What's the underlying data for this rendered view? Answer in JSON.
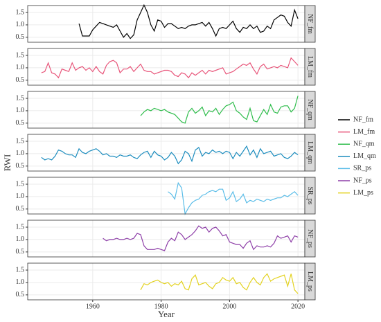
{
  "chart_data": {
    "type": "line",
    "xlabel": "Year",
    "ylabel": "RWI",
    "xlim": [
      1941,
      2022
    ],
    "xticks": [
      1960,
      1980,
      2000,
      2020
    ],
    "ylim": [
      0.3,
      1.78
    ],
    "yticks": [
      0.5,
      {
        "value": 1,
        "label": "1.0"
      },
      1.5
    ],
    "grid": true,
    "x": [
      1945,
      1946,
      1947,
      1948,
      1949,
      1950,
      1951,
      1952,
      1953,
      1954,
      1955,
      1956,
      1957,
      1958,
      1959,
      1960,
      1961,
      1962,
      1963,
      1964,
      1965,
      1966,
      1967,
      1968,
      1969,
      1970,
      1971,
      1972,
      1973,
      1974,
      1975,
      1976,
      1977,
      1978,
      1979,
      1980,
      1981,
      1982,
      1983,
      1984,
      1985,
      1986,
      1987,
      1988,
      1989,
      1990,
      1991,
      1992,
      1993,
      1994,
      1995,
      1996,
      1997,
      1998,
      1999,
      2000,
      2001,
      2002,
      2003,
      2004,
      2005,
      2006,
      2007,
      2008,
      2009,
      2010,
      2011,
      2012,
      2013,
      2014,
      2015,
      2016,
      2017,
      2018,
      2019,
      2020
    ],
    "series": [
      {
        "name": "NF_fm",
        "color": "#000000",
        "values": [
          null,
          null,
          null,
          null,
          null,
          null,
          null,
          null,
          null,
          null,
          null,
          1.05,
          0.55,
          0.55,
          0.55,
          0.8,
          0.95,
          1.1,
          1.05,
          1.0,
          0.95,
          0.9,
          1.0,
          0.75,
          0.5,
          0.65,
          0.45,
          0.6,
          1.2,
          1.5,
          1.8,
          1.5,
          1.0,
          0.75,
          1.2,
          1.15,
          0.9,
          1.05,
          1.05,
          0.95,
          0.85,
          0.9,
          0.85,
          0.95,
          1.0,
          1.0,
          1.05,
          1.1,
          0.95,
          1.1,
          0.85,
          0.55,
          0.85,
          0.9,
          0.85,
          1.0,
          1.15,
          0.85,
          0.7,
          0.9,
          0.85,
          1.0,
          0.85,
          0.95,
          0.7,
          0.75,
          0.95,
          0.85,
          1.2,
          1.3,
          1.4,
          1.35,
          1.1,
          0.95,
          1.6,
          1.25
        ]
      },
      {
        "name": "LM_fm",
        "color": "#e8557a",
        "values": [
          0.8,
          0.85,
          1.2,
          0.8,
          0.75,
          0.6,
          0.95,
          0.9,
          0.85,
          1.2,
          0.9,
          1.0,
          1.05,
          0.9,
          1.0,
          0.85,
          1.05,
          0.85,
          0.75,
          1.1,
          1.25,
          1.3,
          1.2,
          0.8,
          0.95,
          0.95,
          1.05,
          0.85,
          1.0,
          1.15,
          0.9,
          0.85,
          0.85,
          0.75,
          0.8,
          0.85,
          0.9,
          0.9,
          0.85,
          0.7,
          0.65,
          0.8,
          0.75,
          0.6,
          0.8,
          0.7,
          0.8,
          0.9,
          0.75,
          0.9,
          0.85,
          0.9,
          0.95,
          1.0,
          0.75,
          0.8,
          0.85,
          0.95,
          1.05,
          1.15,
          1.1,
          1.2,
          0.95,
          0.75,
          1.05,
          1.15,
          0.95,
          1.0,
          1.05,
          1.0,
          1.1,
          1.05,
          1.0,
          1.4,
          1.25,
          1.1
        ]
      },
      {
        "name": "NF_qm",
        "color": "#2fbd4c",
        "values": [
          null,
          null,
          null,
          null,
          null,
          null,
          null,
          null,
          null,
          null,
          null,
          null,
          null,
          null,
          null,
          null,
          null,
          null,
          null,
          null,
          null,
          null,
          null,
          null,
          null,
          null,
          null,
          null,
          null,
          0.8,
          0.95,
          1.05,
          1.0,
          1.1,
          1.05,
          1.0,
          1.05,
          0.95,
          0.9,
          0.85,
          0.7,
          0.55,
          0.5,
          0.95,
          1.1,
          0.9,
          1.0,
          1.15,
          0.8,
          1.0,
          0.95,
          1.1,
          0.85,
          1.05,
          1.2,
          1.25,
          1.35,
          1.0,
          0.9,
          0.75,
          0.65,
          1.1,
          0.6,
          0.55,
          0.8,
          1.05,
          0.85,
          1.25,
          0.95,
          0.9,
          1.15,
          1.2,
          1.2,
          0.95,
          1.1,
          1.6
        ]
      },
      {
        "name": "LM_qm",
        "color": "#1b8cbe",
        "values": [
          0.85,
          0.75,
          0.8,
          0.75,
          0.9,
          1.15,
          1.1,
          1.0,
          0.95,
          0.95,
          0.85,
          1.2,
          1.05,
          1.0,
          1.1,
          1.15,
          1.2,
          1.1,
          0.95,
          1.0,
          0.9,
          0.9,
          0.85,
          0.95,
          0.9,
          0.9,
          0.95,
          0.85,
          0.8,
          0.95,
          1.05,
          1.1,
          0.85,
          1.1,
          0.95,
          0.9,
          0.75,
          0.85,
          1.05,
          0.9,
          0.6,
          0.75,
          1.1,
          1.0,
          0.7,
          1.15,
          1.25,
          0.9,
          1.05,
          1.0,
          1.15,
          1.05,
          1.1,
          1.0,
          1.1,
          1.05,
          0.8,
          1.05,
          0.9,
          1.1,
          1.3,
          0.95,
          1.15,
          0.85,
          1.2,
          1.0,
          1.05,
          1.1,
          0.9,
          0.95,
          1.0,
          0.85,
          0.8,
          0.9,
          1.05,
          0.95
        ]
      },
      {
        "name": "SR_ps",
        "color": "#5bbde8",
        "values": [
          null,
          null,
          null,
          null,
          null,
          null,
          null,
          null,
          null,
          null,
          null,
          null,
          null,
          null,
          null,
          null,
          null,
          null,
          null,
          null,
          null,
          null,
          null,
          null,
          null,
          null,
          null,
          null,
          null,
          null,
          null,
          null,
          null,
          null,
          null,
          null,
          null,
          1.2,
          1.1,
          0.9,
          1.55,
          1.35,
          0.3,
          0.55,
          0.75,
          0.85,
          0.9,
          1.05,
          1.1,
          1.2,
          1.25,
          1.2,
          1.3,
          1.3,
          0.85,
          0.95,
          1.2,
          0.8,
          0.9,
          1.1,
          0.75,
          0.85,
          0.8,
          0.9,
          0.85,
          0.8,
          0.9,
          0.85,
          0.9,
          0.95,
          0.95,
          1.05,
          1.0,
          1.1,
          1.2,
          1.05
        ]
      },
      {
        "name": "NF_ps",
        "color": "#8e3fa8",
        "values": [
          null,
          null,
          null,
          null,
          null,
          null,
          null,
          null,
          null,
          null,
          null,
          null,
          null,
          null,
          null,
          null,
          null,
          null,
          1.05,
          0.95,
          1.0,
          1.0,
          1.05,
          1.0,
          1.0,
          1.05,
          1.0,
          1.05,
          1.25,
          1.2,
          0.75,
          0.6,
          0.6,
          0.6,
          0.65,
          0.6,
          0.55,
          0.9,
          1.05,
          0.95,
          1.3,
          1.2,
          1.0,
          1.1,
          1.2,
          1.35,
          1.55,
          1.45,
          1.5,
          1.3,
          1.45,
          1.5,
          1.35,
          1.15,
          1.2,
          0.9,
          0.85,
          0.8,
          0.8,
          0.65,
          0.85,
          0.95,
          0.6,
          0.75,
          0.7,
          0.7,
          0.75,
          0.7,
          0.85,
          1.15,
          1.05,
          1.1,
          1.15,
          0.9,
          1.15,
          1.1
        ]
      },
      {
        "name": "LM_ps",
        "color": "#e3d21f",
        "values": [
          null,
          null,
          null,
          null,
          null,
          null,
          null,
          null,
          null,
          null,
          null,
          null,
          null,
          null,
          null,
          null,
          null,
          null,
          null,
          null,
          null,
          null,
          null,
          null,
          null,
          null,
          null,
          null,
          null,
          0.7,
          0.95,
          0.9,
          1.0,
          1.05,
          1.1,
          1.0,
          0.95,
          1.0,
          0.85,
          0.95,
          0.9,
          1.05,
          0.75,
          0.7,
          1.15,
          1.3,
          0.9,
          0.95,
          1.0,
          0.85,
          0.75,
          0.95,
          1.0,
          1.2,
          1.1,
          1.05,
          1.2,
          0.95,
          1.0,
          0.8,
          0.7,
          1.0,
          1.2,
          1.0,
          0.9,
          1.2,
          1.35,
          1.05,
          1.15,
          1.2,
          1.25,
          1.3,
          0.85,
          1.35,
          0.7,
          0.55
        ]
      }
    ]
  }
}
